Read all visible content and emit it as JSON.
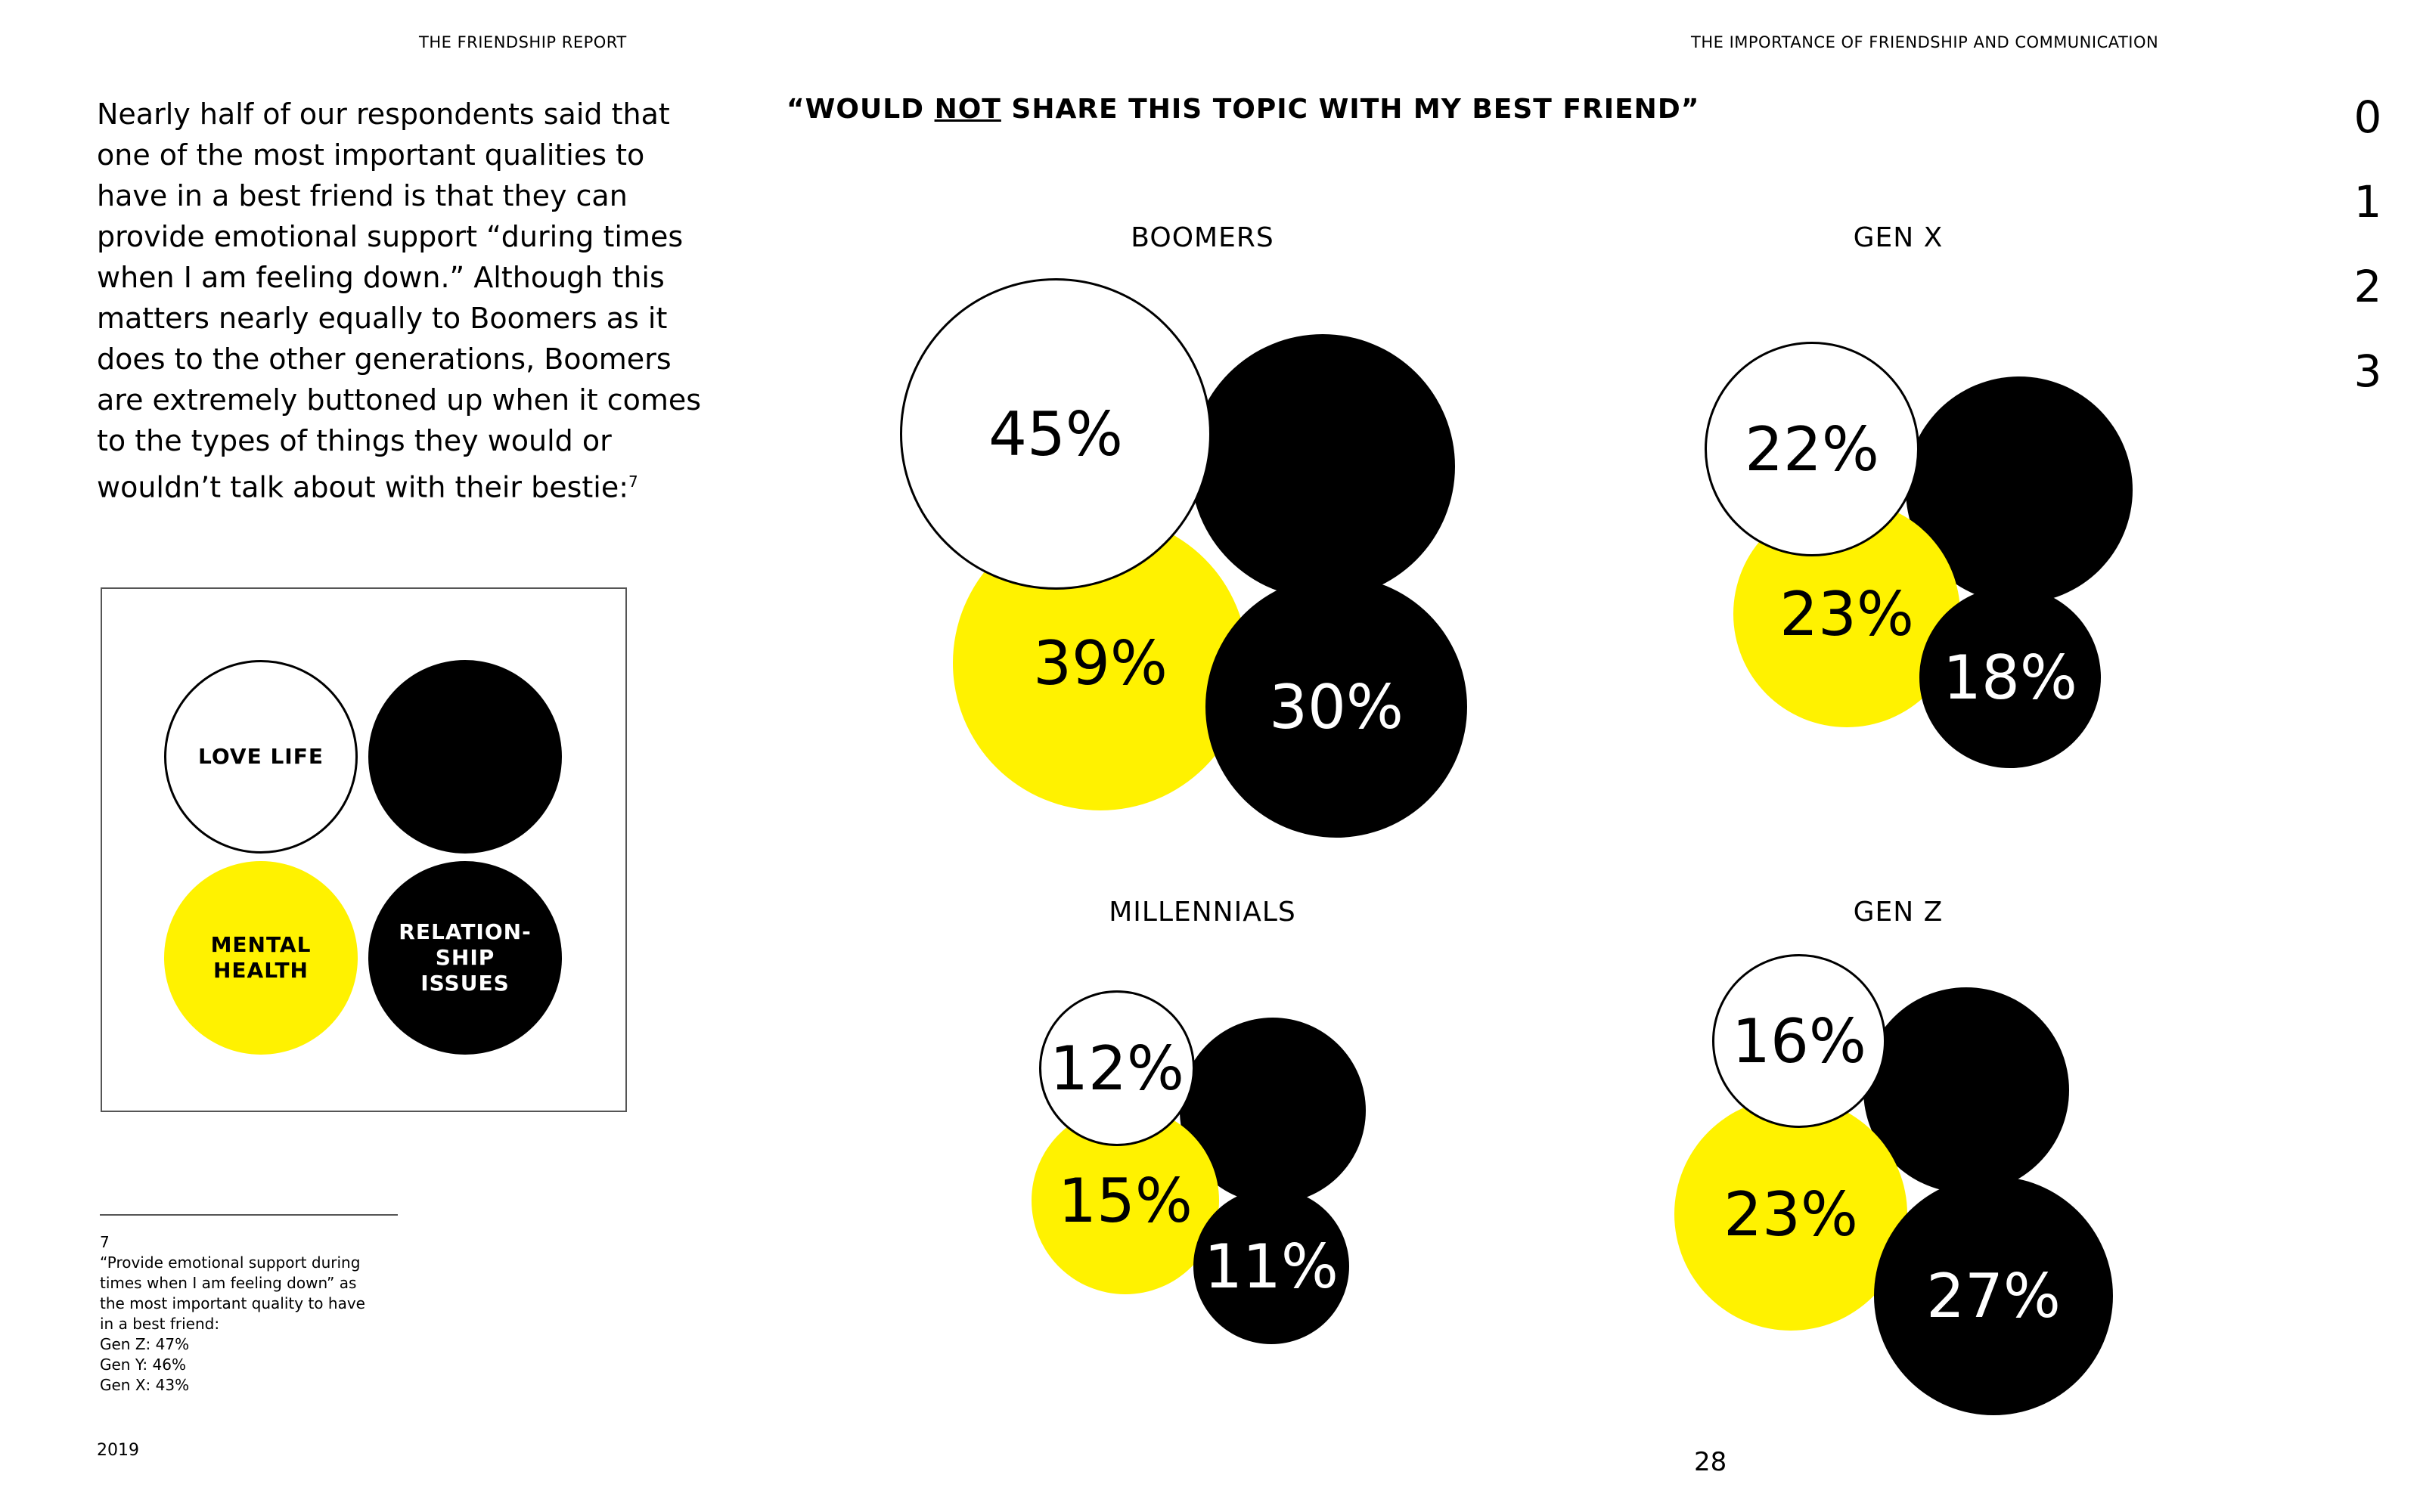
{
  "header": {
    "left": "THE FRIENDSHIP REPORT",
    "right": "THE IMPORTANCE OF FRIENDSHIP AND COMMUNICATION"
  },
  "body_text": "Nearly half of our respondents said that one of the most important qualities to have in a best friend is that they can provide emotional support “during times when I am feeling down.” Although this matters nearly equally to Boomers as it does to the other generations, Boomers are extremely buttoned up when it comes to the types of things they would or wouldn’t talk about with their bestie:",
  "body_text_footnote_ref": "7",
  "chart_title": {
    "prefix": "“WOULD ",
    "emphasis": "NOT",
    "suffix": " SHARE THIS TOPIC WITH MY BEST FRIEND”"
  },
  "legend": {
    "love_life": "LOVE LIFE",
    "mental_health_line1": "MENTAL",
    "mental_health_line2": "HEALTH",
    "relationship_line1": "RELATION-",
    "relationship_line2": "SHIP",
    "relationship_line3": "ISSUES"
  },
  "colors": {
    "love_life": "#FFFFFF",
    "other_topic": "#000000",
    "mental_health": "#FFF200",
    "relationship_issues": "#000000"
  },
  "chart_data": {
    "type": "bubble",
    "title": "“WOULD NOT SHARE THIS TOPIC WITH MY BEST FRIEND”",
    "series_legend": [
      "LOVE LIFE",
      "",
      "MENTAL HEALTH",
      "RELATIONSHIP ISSUES"
    ],
    "groups": [
      {
        "name": "BOOMERS",
        "love_life": 45,
        "mental_health": 39,
        "relationship_issues": 30,
        "love_life_label": "45%",
        "mental_health_label": "39%",
        "relationship_issues_label": "30%"
      },
      {
        "name": "GEN X",
        "love_life": 22,
        "mental_health": 23,
        "relationship_issues": 18,
        "love_life_label": "22%",
        "mental_health_label": "23%",
        "relationship_issues_label": "18%"
      },
      {
        "name": "MILLENNIALS",
        "love_life": 12,
        "mental_health": 15,
        "relationship_issues": 11,
        "love_life_label": "12%",
        "mental_health_label": "15%",
        "relationship_issues_label": "11%"
      },
      {
        "name": "GEN Z",
        "love_life": 16,
        "mental_health": 23,
        "relationship_issues": 27,
        "love_life_label": "16%",
        "mental_health_label": "23%",
        "relationship_issues_label": "27%"
      }
    ]
  },
  "footnote": {
    "number": "7",
    "text": "“Provide emotional support during\ntimes when I am feeling down” as\nthe most important quality to have\nin a best friend:\nGen Z: 47%\nGen Y: 46%\nGen X: 43%"
  },
  "footer": {
    "year": "2019",
    "page_number": "28"
  },
  "side_nav": [
    "0",
    "1",
    "2",
    "3"
  ]
}
